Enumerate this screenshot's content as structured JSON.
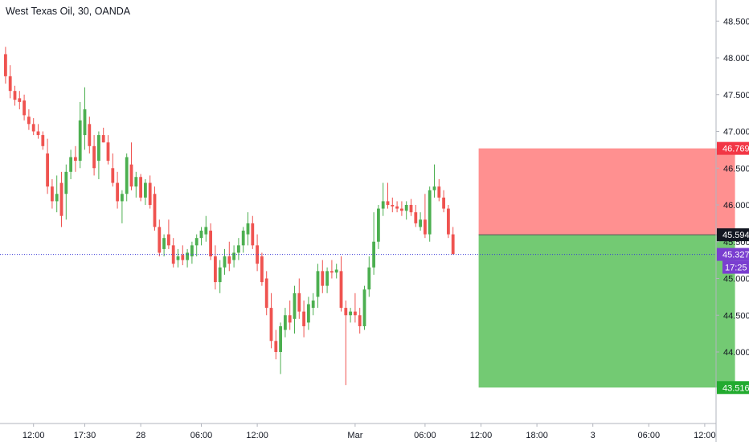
{
  "header": {
    "symbol_title": "West Texas Oil, 30, OANDA"
  },
  "colors": {
    "up": "#4caf50",
    "down": "#ef5350",
    "stop_zone": "#ff8a8a",
    "target_zone": "#6cc76c",
    "last_price_line": "#3a3ad8",
    "stop_tag": "#f23645",
    "target_tag": "#22ab2f",
    "entry_tag": "#131722",
    "last_price_tag": "#7a3ed0",
    "countdown_tag": "#7a3ed0"
  },
  "chart_data": {
    "type": "candlestick",
    "symbol": "West Texas Oil",
    "interval": "30",
    "source": "OANDA",
    "ylim": [
      43.0,
      48.8
    ],
    "y_ticks": [
      "48.500",
      "48.000",
      "47.500",
      "47.000",
      "46.500",
      "46.000",
      "45.500",
      "45.000",
      "44.500",
      "44.000"
    ],
    "x_ticks": [
      "12:00",
      "17:30",
      "28",
      "06:00",
      "12:00",
      "Mar",
      "06:00",
      "12:00",
      "18:00",
      "3",
      "06:00",
      "12:00"
    ],
    "x_tick_bars": [
      6,
      17,
      29,
      42,
      54,
      75,
      90,
      102,
      114,
      126,
      138,
      150
    ],
    "candles": [
      [
        48.05,
        48.15,
        47.65,
        47.75
      ],
      [
        47.75,
        47.9,
        47.45,
        47.55
      ],
      [
        47.55,
        47.62,
        47.35,
        47.43
      ],
      [
        47.45,
        47.55,
        47.3,
        47.4
      ],
      [
        47.42,
        47.5,
        47.15,
        47.22
      ],
      [
        47.2,
        47.3,
        47.02,
        47.1
      ],
      [
        47.1,
        47.18,
        46.95,
        47.0
      ],
      [
        47.0,
        47.1,
        46.9,
        46.95
      ],
      [
        46.95,
        47.0,
        46.75,
        46.8
      ],
      [
        46.7,
        46.9,
        46.15,
        46.25
      ],
      [
        46.25,
        46.35,
        45.95,
        46.05
      ],
      [
        46.05,
        46.4,
        45.9,
        46.15
      ],
      [
        46.3,
        46.45,
        45.7,
        45.85
      ],
      [
        46.15,
        46.55,
        45.8,
        46.45
      ],
      [
        46.45,
        46.75,
        46.35,
        46.65
      ],
      [
        46.65,
        46.8,
        46.45,
        46.6
      ],
      [
        46.6,
        47.4,
        46.5,
        47.15
      ],
      [
        46.95,
        47.6,
        46.75,
        47.3
      ],
      [
        47.1,
        47.2,
        46.7,
        46.8
      ],
      [
        46.8,
        46.95,
        46.4,
        46.5
      ],
      [
        46.6,
        47.0,
        46.35,
        46.95
      ],
      [
        46.95,
        47.05,
        46.85,
        46.85
      ],
      [
        46.85,
        46.95,
        46.55,
        46.6
      ],
      [
        46.5,
        46.7,
        46.25,
        46.3
      ],
      [
        46.3,
        46.45,
        45.95,
        46.05
      ],
      [
        46.05,
        46.2,
        45.75,
        46.15
      ],
      [
        46.15,
        46.7,
        46.05,
        46.65
      ],
      [
        46.55,
        46.85,
        46.2,
        46.25
      ],
      [
        46.25,
        46.45,
        46.1,
        46.38
      ],
      [
        46.38,
        46.42,
        46.05,
        46.1
      ],
      [
        46.1,
        46.35,
        46.0,
        46.3
      ],
      [
        46.3,
        46.4,
        45.95,
        46.0
      ],
      [
        46.15,
        46.25,
        45.65,
        45.7
      ],
      [
        45.7,
        45.8,
        45.3,
        45.35
      ],
      [
        45.4,
        45.6,
        45.3,
        45.55
      ],
      [
        45.6,
        45.8,
        45.4,
        45.45
      ],
      [
        45.45,
        45.55,
        45.15,
        45.2
      ],
      [
        45.25,
        45.4,
        45.15,
        45.3
      ],
      [
        45.32,
        45.45,
        45.18,
        45.25
      ],
      [
        45.25,
        45.4,
        45.15,
        45.35
      ],
      [
        45.3,
        45.5,
        45.2,
        45.45
      ],
      [
        45.45,
        45.6,
        45.3,
        45.55
      ],
      [
        45.55,
        45.7,
        45.45,
        45.65
      ],
      [
        45.6,
        45.85,
        45.5,
        45.7
      ],
      [
        45.65,
        45.75,
        45.25,
        45.3
      ],
      [
        45.3,
        45.45,
        44.85,
        44.95
      ],
      [
        44.95,
        45.25,
        44.8,
        45.15
      ],
      [
        45.15,
        45.4,
        45.05,
        45.3
      ],
      [
        45.3,
        45.5,
        45.1,
        45.2
      ],
      [
        45.25,
        45.45,
        45.15,
        45.35
      ],
      [
        45.35,
        45.55,
        45.25,
        45.45
      ],
      [
        45.45,
        45.7,
        45.35,
        45.65
      ],
      [
        45.6,
        45.9,
        45.45,
        45.75
      ],
      [
        45.75,
        45.85,
        45.4,
        45.45
      ],
      [
        45.45,
        45.6,
        45.1,
        45.2
      ],
      [
        45.3,
        45.35,
        44.9,
        44.95
      ],
      [
        45.0,
        45.1,
        44.5,
        44.6
      ],
      [
        44.6,
        44.8,
        44.05,
        44.15
      ],
      [
        44.15,
        44.3,
        43.9,
        44.0
      ],
      [
        44.0,
        44.4,
        43.7,
        44.35
      ],
      [
        44.3,
        44.6,
        44.2,
        44.5
      ],
      [
        44.5,
        44.7,
        44.3,
        44.4
      ],
      [
        44.45,
        44.9,
        44.25,
        44.8
      ],
      [
        44.8,
        45.0,
        44.45,
        44.55
      ],
      [
        44.55,
        44.7,
        44.2,
        44.35
      ],
      [
        44.4,
        44.75,
        44.3,
        44.65
      ],
      [
        44.6,
        44.8,
        44.5,
        44.7
      ],
      [
        44.75,
        45.2,
        44.6,
        45.1
      ],
      [
        45.1,
        45.25,
        44.8,
        44.9
      ],
      [
        44.9,
        45.15,
        44.8,
        45.1
      ],
      [
        45.1,
        45.25,
        45.0,
        45.08
      ],
      [
        45.08,
        45.2,
        45.0,
        45.12
      ],
      [
        45.1,
        45.3,
        44.55,
        44.6
      ],
      [
        44.6,
        44.7,
        43.55,
        44.5
      ],
      [
        44.5,
        44.6,
        44.4,
        44.55
      ],
      [
        44.55,
        44.8,
        44.4,
        44.5
      ],
      [
        44.5,
        44.6,
        44.25,
        44.35
      ],
      [
        44.35,
        44.9,
        44.3,
        44.85
      ],
      [
        44.85,
        45.3,
        44.75,
        45.15
      ],
      [
        45.15,
        45.9,
        45.05,
        45.5
      ],
      [
        45.5,
        46.0,
        45.4,
        45.95
      ],
      [
        45.95,
        46.3,
        45.85,
        46.05
      ],
      [
        46.05,
        46.3,
        45.95,
        46.0
      ],
      [
        46.0,
        46.1,
        45.9,
        45.98
      ],
      [
        45.98,
        46.05,
        45.9,
        45.95
      ],
      [
        45.95,
        46.05,
        45.85,
        45.92
      ],
      [
        45.92,
        46.05,
        45.8,
        46.0
      ],
      [
        46.0,
        46.08,
        45.85,
        45.9
      ],
      [
        45.9,
        46.0,
        45.7,
        45.75
      ],
      [
        45.7,
        45.9,
        45.65,
        45.8
      ],
      [
        45.8,
        46.15,
        45.55,
        45.6
      ],
      [
        45.6,
        46.25,
        45.5,
        46.2
      ],
      [
        46.2,
        46.55,
        46.1,
        46.25
      ],
      [
        46.25,
        46.35,
        46.05,
        46.1
      ],
      [
        46.1,
        46.2,
        45.9,
        45.95
      ],
      [
        45.95,
        46.0,
        45.55,
        45.6
      ],
      [
        45.6,
        45.7,
        45.33,
        45.33
      ]
    ],
    "position": {
      "stop_level": 46.769,
      "entry_level": 45.594,
      "target_level": 43.516,
      "start_bar": 102,
      "end_bar": 157
    },
    "last_price": {
      "price": "45.327",
      "countdown": "17:25",
      "level": 45.327
    },
    "axis_labels": {
      "stop": "46.769",
      "entry": "45.594",
      "target": "43.516"
    }
  }
}
